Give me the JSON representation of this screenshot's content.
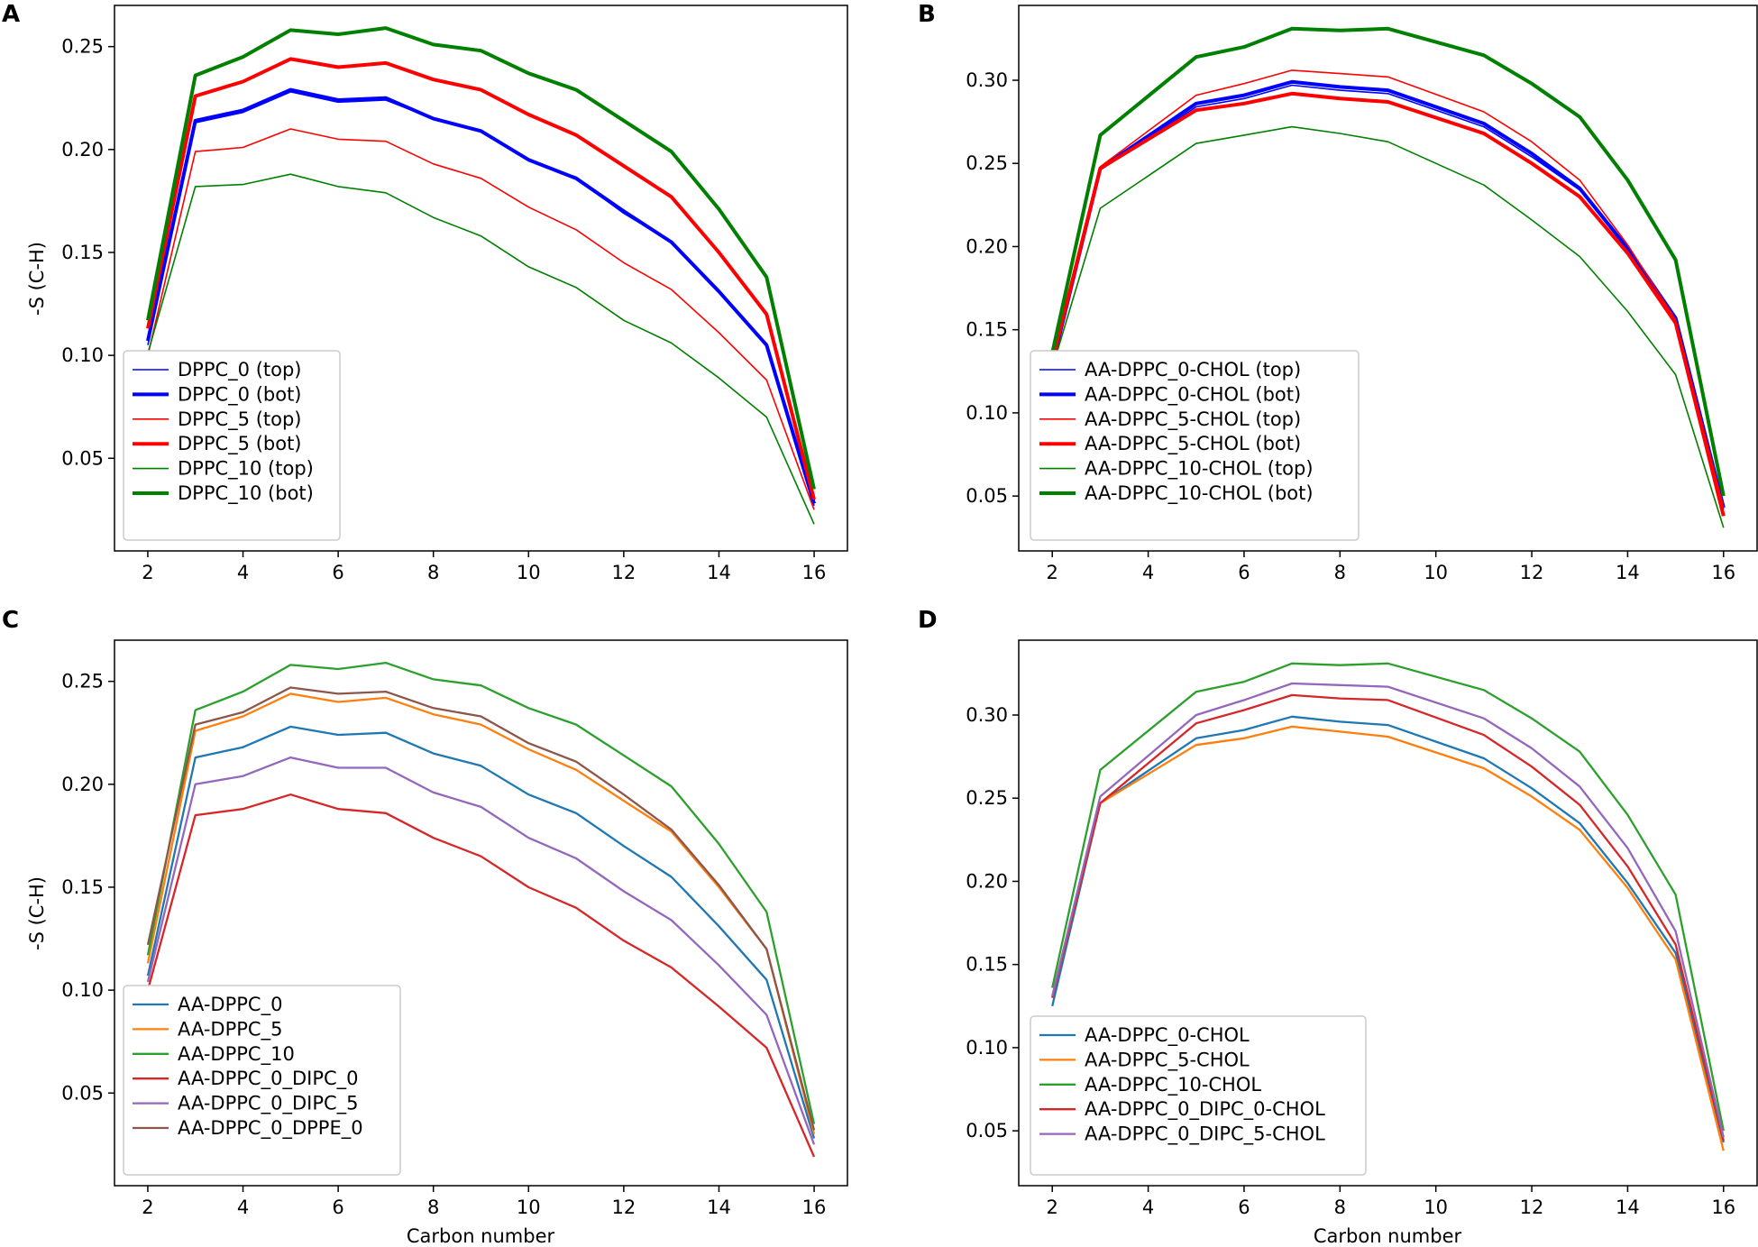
{
  "chart_data": [
    {
      "panel": "A",
      "type": "line",
      "title": "",
      "xlabel": "",
      "ylabel": "-S (C-H)",
      "xlim": [
        1.3,
        16.7
      ],
      "ylim": [
        0.005,
        0.27
      ],
      "xticks": [
        2,
        4,
        6,
        8,
        10,
        12,
        14,
        16
      ],
      "yticks": [
        0.05,
        0.1,
        0.15,
        0.2,
        0.25
      ],
      "ytick_labels": [
        "0.05",
        "0.10",
        "0.15",
        "0.20",
        "0.25"
      ],
      "legend_position": "lower-left",
      "x": [
        2,
        3,
        4,
        5,
        6,
        7,
        8,
        9,
        10,
        11,
        12,
        13,
        14,
        15,
        16
      ],
      "series": [
        {
          "name": "DPPC_0 (top)",
          "color": "#0000ff",
          "weight": "thin",
          "values": [
            0.105,
            0.213,
            0.218,
            0.228,
            0.223,
            0.224,
            0.215,
            0.209,
            0.195,
            0.186,
            0.169,
            0.155,
            0.131,
            0.105,
            0.027
          ]
        },
        {
          "name": "DPPC_0 (bot)",
          "color": "#0000ff",
          "weight": "thick",
          "values": [
            0.107,
            0.214,
            0.219,
            0.229,
            0.224,
            0.225,
            0.215,
            0.209,
            0.195,
            0.186,
            0.17,
            0.155,
            0.131,
            0.105,
            0.028
          ]
        },
        {
          "name": "DPPC_5 (top)",
          "color": "#ff0000",
          "weight": "thin",
          "values": [
            0.1,
            0.199,
            0.201,
            0.21,
            0.205,
            0.204,
            0.193,
            0.186,
            0.172,
            0.161,
            0.145,
            0.132,
            0.111,
            0.088,
            0.025
          ]
        },
        {
          "name": "DPPC_5 (bot)",
          "color": "#ff0000",
          "weight": "thick",
          "values": [
            0.113,
            0.226,
            0.233,
            0.244,
            0.24,
            0.242,
            0.234,
            0.229,
            0.217,
            0.207,
            0.192,
            0.177,
            0.15,
            0.12,
            0.03
          ]
        },
        {
          "name": "DPPC_10 (top)",
          "color": "#008000",
          "weight": "thin",
          "values": [
            0.101,
            0.182,
            0.183,
            0.188,
            0.182,
            0.179,
            0.167,
            0.158,
            0.143,
            0.133,
            0.117,
            0.106,
            0.089,
            0.07,
            0.018
          ]
        },
        {
          "name": "DPPC_10 (bot)",
          "color": "#008000",
          "weight": "thick",
          "values": [
            0.117,
            0.236,
            0.245,
            0.258,
            0.256,
            0.259,
            0.251,
            0.248,
            0.237,
            0.229,
            0.214,
            0.199,
            0.171,
            0.138,
            0.035
          ]
        }
      ]
    },
    {
      "panel": "B",
      "type": "line",
      "title": "",
      "xlabel": "",
      "ylabel": "",
      "xlim": [
        1.3,
        16.7
      ],
      "ylim": [
        0.017,
        0.345
      ],
      "xticks": [
        2,
        4,
        6,
        8,
        10,
        12,
        14,
        16
      ],
      "yticks": [
        0.05,
        0.1,
        0.15,
        0.2,
        0.25,
        0.3
      ],
      "ytick_labels": [
        "0.05",
        "0.10",
        "0.15",
        "0.20",
        "0.25",
        "0.30"
      ],
      "legend_position": "lower-left",
      "x": [
        2,
        3,
        5,
        6,
        7,
        8,
        9,
        11,
        12,
        13,
        14,
        15,
        16
      ],
      "series": [
        {
          "name": "AA-DPPC_0-CHOL (top)",
          "color": "#0000ff",
          "weight": "thin",
          "values": [
            0.128,
            0.246,
            0.284,
            0.289,
            0.297,
            0.294,
            0.292,
            0.272,
            0.254,
            0.234,
            0.198,
            0.157,
            0.042
          ]
        },
        {
          "name": "AA-DPPC_0-CHOL (bot)",
          "color": "#0000ff",
          "weight": "thick",
          "values": [
            0.129,
            0.247,
            0.286,
            0.291,
            0.299,
            0.296,
            0.294,
            0.274,
            0.256,
            0.235,
            0.199,
            0.157,
            0.043
          ]
        },
        {
          "name": "AA-DPPC_5-CHOL (top)",
          "color": "#ff0000",
          "weight": "thin",
          "values": [
            0.13,
            0.248,
            0.291,
            0.298,
            0.306,
            0.304,
            0.302,
            0.281,
            0.263,
            0.24,
            0.201,
            0.156,
            0.043
          ]
        },
        {
          "name": "AA-DPPC_5-CHOL (bot)",
          "color": "#ff0000",
          "weight": "thick",
          "values": [
            0.131,
            0.247,
            0.282,
            0.286,
            0.292,
            0.289,
            0.287,
            0.268,
            0.25,
            0.23,
            0.196,
            0.154,
            0.038
          ]
        },
        {
          "name": "AA-DPPC_10-CHOL (top)",
          "color": "#008000",
          "weight": "thin",
          "values": [
            0.127,
            0.223,
            0.262,
            0.267,
            0.272,
            0.268,
            0.263,
            0.237,
            0.216,
            0.194,
            0.161,
            0.123,
            0.031
          ]
        },
        {
          "name": "AA-DPPC_10-CHOL (bot)",
          "color": "#008000",
          "weight": "thick",
          "values": [
            0.136,
            0.267,
            0.314,
            0.32,
            0.331,
            0.33,
            0.331,
            0.315,
            0.298,
            0.278,
            0.24,
            0.192,
            0.05
          ]
        }
      ]
    },
    {
      "panel": "C",
      "type": "line",
      "title": "",
      "xlabel": "Carbon number",
      "ylabel": "-S (C-H)",
      "xlim": [
        1.3,
        16.7
      ],
      "ylim": [
        0.005,
        0.27
      ],
      "xticks": [
        2,
        4,
        6,
        8,
        10,
        12,
        14,
        16
      ],
      "yticks": [
        0.05,
        0.1,
        0.15,
        0.2,
        0.25
      ],
      "ytick_labels": [
        "0.05",
        "0.10",
        "0.15",
        "0.20",
        "0.25"
      ],
      "legend_position": "lower-left",
      "x": [
        2,
        3,
        4,
        5,
        6,
        7,
        8,
        9,
        10,
        11,
        12,
        13,
        14,
        15,
        16
      ],
      "series": [
        {
          "name": "AA-DPPC_0",
          "color": "#1f77b4",
          "values": [
            0.107,
            0.213,
            0.218,
            0.228,
            0.224,
            0.225,
            0.215,
            0.209,
            0.195,
            0.186,
            0.17,
            0.155,
            0.131,
            0.105,
            0.028
          ]
        },
        {
          "name": "AA-DPPC_5",
          "color": "#ff7f0e",
          "values": [
            0.113,
            0.226,
            0.233,
            0.244,
            0.24,
            0.242,
            0.234,
            0.229,
            0.217,
            0.207,
            0.192,
            0.177,
            0.15,
            0.12,
            0.03
          ]
        },
        {
          "name": "AA-DPPC_10",
          "color": "#2ca02c",
          "values": [
            0.117,
            0.236,
            0.245,
            0.258,
            0.256,
            0.259,
            0.251,
            0.248,
            0.237,
            0.229,
            0.214,
            0.199,
            0.171,
            0.138,
            0.035
          ]
        },
        {
          "name": "AA-DPPC_0_DIPC_0",
          "color": "#d62728",
          "values": [
            0.1,
            0.185,
            0.188,
            0.195,
            0.188,
            0.186,
            0.174,
            0.165,
            0.15,
            0.14,
            0.124,
            0.111,
            0.092,
            0.072,
            0.019
          ]
        },
        {
          "name": "AA-DPPC_0_DIPC_5",
          "color": "#9467bd",
          "values": [
            0.104,
            0.2,
            0.204,
            0.213,
            0.208,
            0.208,
            0.196,
            0.189,
            0.174,
            0.164,
            0.148,
            0.134,
            0.112,
            0.088,
            0.025
          ]
        },
        {
          "name": "AA-DPPC_0_DPPE_0",
          "color": "#8c564b",
          "values": [
            0.122,
            0.229,
            0.235,
            0.247,
            0.244,
            0.245,
            0.237,
            0.233,
            0.22,
            0.211,
            0.195,
            0.178,
            0.151,
            0.12,
            0.032
          ]
        }
      ]
    },
    {
      "panel": "D",
      "type": "line",
      "title": "",
      "xlabel": "Carbon number",
      "ylabel": "",
      "xlim": [
        1.3,
        16.7
      ],
      "ylim": [
        0.017,
        0.345
      ],
      "xticks": [
        2,
        4,
        6,
        8,
        10,
        12,
        14,
        16
      ],
      "yticks": [
        0.05,
        0.1,
        0.15,
        0.2,
        0.25,
        0.3
      ],
      "ytick_labels": [
        "0.05",
        "0.10",
        "0.15",
        "0.20",
        "0.25",
        "0.30"
      ],
      "legend_position": "lower-left",
      "x": [
        2,
        3,
        5,
        6,
        7,
        8,
        9,
        11,
        12,
        13,
        14,
        15,
        16
      ],
      "series": [
        {
          "name": "AA-DPPC_0-CHOL",
          "color": "#1f77b4",
          "values": [
            0.125,
            0.247,
            0.286,
            0.291,
            0.299,
            0.296,
            0.294,
            0.274,
            0.256,
            0.235,
            0.199,
            0.157,
            0.043
          ]
        },
        {
          "name": "AA-DPPC_5-CHOL",
          "color": "#ff7f0e",
          "values": [
            0.13,
            0.247,
            0.282,
            0.286,
            0.293,
            0.29,
            0.287,
            0.268,
            0.251,
            0.231,
            0.196,
            0.153,
            0.038
          ]
        },
        {
          "name": "AA-DPPC_10-CHOL",
          "color": "#2ca02c",
          "values": [
            0.136,
            0.267,
            0.314,
            0.32,
            0.331,
            0.33,
            0.331,
            0.315,
            0.298,
            0.278,
            0.24,
            0.192,
            0.05
          ]
        },
        {
          "name": "AA-DPPC_0_DIPC_0-CHOL",
          "color": "#d62728",
          "values": [
            0.13,
            0.247,
            0.295,
            0.303,
            0.312,
            0.31,
            0.309,
            0.288,
            0.269,
            0.246,
            0.209,
            0.162,
            0.044
          ]
        },
        {
          "name": "AA-DPPC_0_DIPC_5-CHOL",
          "color": "#9467bd",
          "values": [
            0.131,
            0.251,
            0.3,
            0.309,
            0.319,
            0.318,
            0.317,
            0.298,
            0.28,
            0.257,
            0.22,
            0.17,
            0.046
          ]
        }
      ]
    }
  ]
}
